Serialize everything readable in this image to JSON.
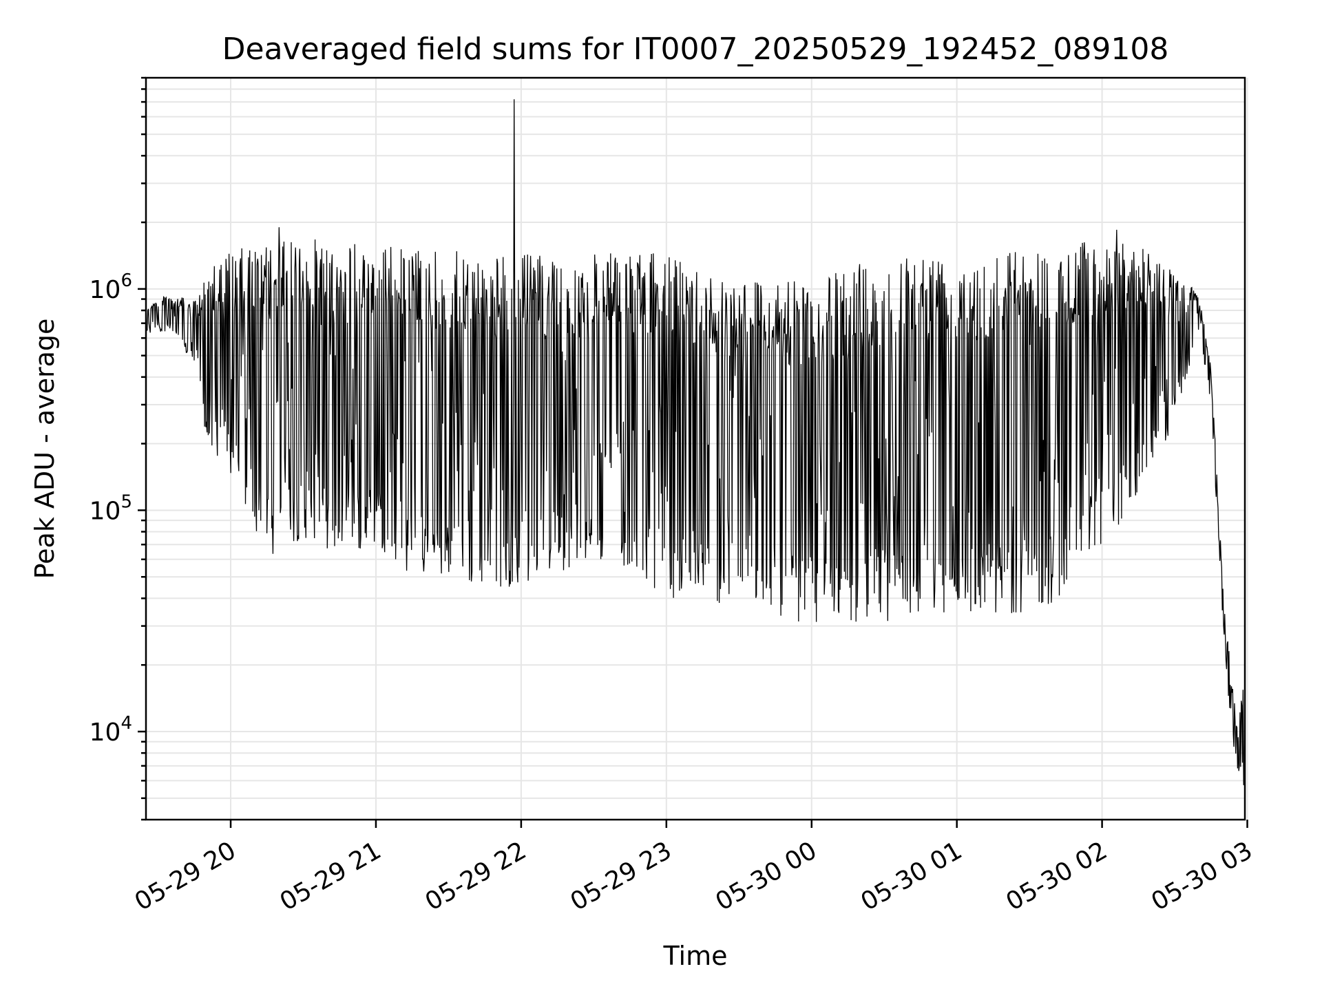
{
  "chart_data": {
    "type": "line",
    "title": "Deaveraged field sums for IT0007_20250529_192452_089108",
    "xlabel": "Time",
    "ylabel": "Peak ADU - average",
    "y_scale": "log",
    "ylim": [
      4000,
      9000000
    ],
    "xlim": [
      "2025-05-29 19:25",
      "2025-05-30 02:59"
    ],
    "grid": true,
    "x_ticks": [
      "05-29 20",
      "05-29 21",
      "05-29 22",
      "05-29 23",
      "05-30 00",
      "05-30 01",
      "05-30 02",
      "05-30 03"
    ],
    "y_ticks": [
      {
        "base": "10",
        "exp": "4",
        "value": 10000
      },
      {
        "base": "10",
        "exp": "5",
        "value": 100000
      },
      {
        "base": "10",
        "exp": "6",
        "value": 1000000
      }
    ],
    "series": [
      {
        "color": "#000000",
        "envelope": [
          {
            "t": "2025-05-29 19:25",
            "low": 620000,
            "high": 850000
          },
          {
            "t": "2025-05-29 19:35",
            "low": 650000,
            "high": 950000
          },
          {
            "t": "2025-05-29 19:45",
            "low": 450000,
            "high": 880000
          },
          {
            "t": "2025-05-29 19:50",
            "low": 200000,
            "high": 1200000
          },
          {
            "t": "2025-05-29 20:00",
            "low": 140000,
            "high": 1500000
          },
          {
            "t": "2025-05-29 20:15",
            "low": 60000,
            "high": 1600000
          },
          {
            "t": "2025-05-29 20:30",
            "low": 75000,
            "high": 1700000
          },
          {
            "t": "2025-05-29 20:45",
            "low": 60000,
            "high": 1650000
          },
          {
            "t": "2025-05-29 21:00",
            "low": 70000,
            "high": 1600000
          },
          {
            "t": "2025-05-29 21:15",
            "low": 50000,
            "high": 1550000
          },
          {
            "t": "2025-05-29 21:30",
            "low": 50000,
            "high": 1500000
          },
          {
            "t": "2025-05-29 21:40",
            "low": 45000,
            "high": 1450000
          },
          {
            "t": "2025-05-29 21:55",
            "low": 45000,
            "high": 1450000
          },
          {
            "t": "2025-05-29 22:10",
            "low": 50000,
            "high": 1450000
          },
          {
            "t": "2025-05-29 22:30",
            "low": 60000,
            "high": 1450000
          },
          {
            "t": "2025-05-29 22:45",
            "low": 55000,
            "high": 1450000
          },
          {
            "t": "2025-05-29 23:00",
            "low": 40000,
            "high": 1450000
          },
          {
            "t": "2025-05-29 23:20",
            "low": 38000,
            "high": 1200000
          },
          {
            "t": "2025-05-29 23:40",
            "low": 35000,
            "high": 1150000
          },
          {
            "t": "2025-05-30 00:00",
            "low": 30000,
            "high": 1050000
          },
          {
            "t": "2025-05-30 00:20",
            "low": 31000,
            "high": 1350000
          },
          {
            "t": "2025-05-30 00:40",
            "low": 32000,
            "high": 1500000
          },
          {
            "t": "2025-05-30 01:00",
            "low": 35000,
            "high": 1500000
          },
          {
            "t": "2025-05-30 01:20",
            "low": 33000,
            "high": 1550000
          },
          {
            "t": "2025-05-30 01:40",
            "low": 38000,
            "high": 1550000
          },
          {
            "t": "2025-05-30 02:00",
            "low": 70000,
            "high": 1700000
          },
          {
            "t": "2025-05-30 02:15",
            "low": 110000,
            "high": 1600000
          },
          {
            "t": "2025-05-30 02:30",
            "low": 250000,
            "high": 1200000
          },
          {
            "t": "2025-05-30 02:40",
            "low": 650000,
            "high": 950000
          },
          {
            "t": "2025-05-30 02:45",
            "low": 300000,
            "high": 450000
          },
          {
            "t": "2025-05-30 02:50",
            "low": 30000,
            "high": 45000
          },
          {
            "t": "2025-05-30 02:53",
            "low": 11000,
            "high": 20000
          },
          {
            "t": "2025-05-30 02:56",
            "low": 6500,
            "high": 10000
          },
          {
            "t": "2025-05-30 02:59",
            "low": 5500,
            "high": 22000
          }
        ],
        "spikes": [
          {
            "t": "2025-05-29 21:57",
            "value": 7200000
          },
          {
            "t": "2025-05-29 20:20",
            "value": 1900000
          },
          {
            "t": "2025-05-30 02:06",
            "value": 1850000
          }
        ]
      }
    ]
  }
}
